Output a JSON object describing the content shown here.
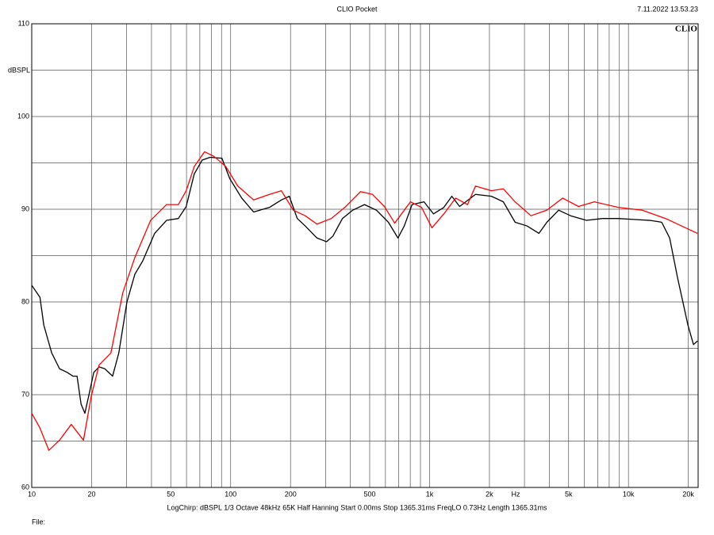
{
  "chart_data": {
    "type": "line",
    "title": "CLIO Pocket",
    "timestamp": "7.11.2022 13.53.23",
    "logo": "CLIO",
    "y_label": "dBSPL",
    "x_label": "Hz",
    "footer": "LogChirp:  dBSPL  1/3 Octave  48kHz  65K  Half Hanning  Start 0.00ms  Stop 1365.31ms  FreqLO 0.73Hz  Length 1365.31ms",
    "file_label": "File:",
    "x_log": true,
    "xlim": [
      10,
      22400
    ],
    "ylim": [
      60,
      110
    ],
    "xticks": [
      10,
      20,
      50,
      100,
      200,
      500,
      {
        "value": 1000,
        "label": "1k"
      },
      {
        "value": 2000,
        "label": "2k"
      },
      {
        "value": 5000,
        "label": "5k"
      },
      {
        "value": 10000,
        "label": "10k"
      },
      {
        "value": 20000,
        "label": "20k"
      }
    ],
    "yticks": [
      60,
      70,
      80,
      90,
      100,
      110
    ],
    "xgrid": [
      20,
      30,
      40,
      50,
      60,
      70,
      80,
      90,
      100,
      200,
      300,
      400,
      500,
      600,
      700,
      800,
      900,
      1000,
      2000,
      3000,
      4000,
      5000,
      6000,
      7000,
      8000,
      9000,
      10000,
      20000
    ],
    "ygrid": [
      65,
      70,
      75,
      80,
      85,
      90,
      95,
      100,
      105
    ],
    "series": [
      {
        "name": "black",
        "color": "#000000",
        "x": [
          10,
          11,
          11.5,
          12.6,
          13.8,
          15.1,
          16.1,
          16.9,
          17.7,
          18.5,
          19.4,
          20.5,
          21.8,
          23.3,
          25.5,
          27.4,
          30.1,
          33,
          36.1,
          41.5,
          47.6,
          54.6,
          59.8,
          65.6,
          71.9,
          78.8,
          90.4,
          99,
          113.7,
          130.5,
          156.7,
          179.9,
          197.2,
          216.2,
          237,
          271.6,
          303.4,
          326.6,
          364.8,
          411,
          471,
          540.8,
          620.9,
          693.4,
          746.4,
          816.6,
          937.5,
          1047,
          1180,
          1294,
          1416,
          1702,
          2046,
          2350,
          2692,
          3090,
          3548,
          3890,
          4457,
          5117,
          6152,
          7396,
          8872,
          10670,
          12820,
          14690,
          16110,
          17660,
          19910,
          21230,
          22230
        ],
        "values": [
          81.8,
          80.5,
          77.5,
          74.5,
          72.8,
          72.4,
          72,
          72,
          69,
          68,
          70,
          72.4,
          73,
          72.8,
          72,
          74.5,
          80,
          83,
          84.4,
          87.4,
          88.8,
          89,
          90.3,
          93.8,
          95.3,
          95.6,
          95.5,
          93.3,
          91.2,
          89.7,
          90.2,
          91,
          91.4,
          89,
          88.2,
          86.9,
          86.5,
          87.1,
          89,
          89.9,
          90.5,
          89.9,
          88.6,
          86.9,
          88.2,
          90.5,
          90.8,
          89.5,
          90.2,
          91.4,
          90.3,
          91.6,
          91.4,
          90.8,
          88.6,
          88.2,
          87.4,
          88.6,
          89.9,
          89.3,
          88.8,
          89,
          89,
          88.9,
          88.8,
          88.6,
          86.9,
          82.6,
          77.5,
          75.4,
          75.8
        ]
      },
      {
        "name": "red",
        "color": "#ff0000",
        "x": [
          10,
          11,
          12.2,
          13.8,
          15.8,
          18.2,
          19.9,
          21.8,
          25,
          28.7,
          33,
          39.6,
          47.6,
          54.6,
          59.8,
          65.6,
          73.9,
          82.5,
          94.6,
          108.6,
          130.5,
          156.7,
          179.9,
          206.5,
          237,
          271.6,
          320.6,
          375,
          449.8,
          516.4,
          592.9,
          668.3,
          801.7,
          912,
          1028,
          1180,
          1353,
          1552,
          1702,
          2046,
          2350,
          2692,
          3236,
          3890,
          4667,
          5610,
          6745,
          8872,
          11690,
          15380,
          18490,
          22230
        ],
        "values": [
          68,
          66.4,
          64,
          65.1,
          66.8,
          65.1,
          69.8,
          73.2,
          74.5,
          81,
          84.8,
          88.8,
          90.5,
          90.5,
          92,
          94.6,
          96.2,
          95.7,
          94.6,
          92.5,
          91,
          91.6,
          92,
          89.9,
          89.3,
          88.4,
          89,
          90.2,
          91.9,
          91.6,
          90.3,
          88.5,
          90.8,
          90.2,
          88,
          89.5,
          91.2,
          90.5,
          92.5,
          92,
          92.2,
          90.8,
          89.3,
          89.9,
          91.2,
          90.3,
          90.8,
          90.2,
          89.9,
          89,
          88.2,
          87.4
        ]
      }
    ]
  }
}
